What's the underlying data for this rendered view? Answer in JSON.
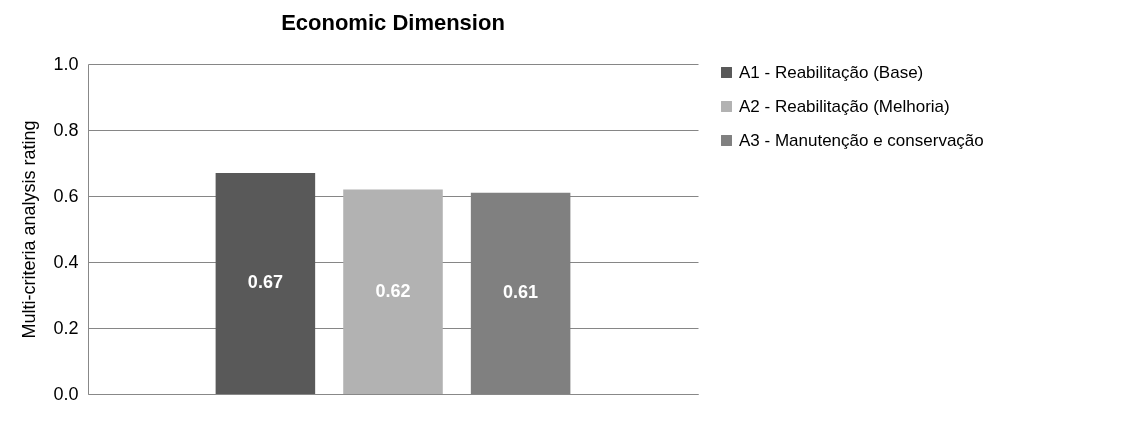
{
  "chart_data": {
    "type": "bar",
    "title": "Economic Dimension",
    "ylabel": "Multi-criteria analysis rating",
    "categories": [
      null
    ],
    "series": [
      {
        "name": "A1 - Reabilitação (Base)",
        "color": "#595959",
        "values": [
          0.67
        ]
      },
      {
        "name": "A2 - Reabilitação (Melhoria)",
        "color": "#b2b2b2",
        "values": [
          0.62
        ]
      },
      {
        "name": "A3 - Manutenção e conservação",
        "color": "#808080",
        "values": [
          0.61
        ]
      }
    ],
    "ylim": [
      0,
      1
    ],
    "yticks": [
      {
        "value": 0,
        "label": "0.0"
      },
      0.2,
      0.4,
      0.6,
      0.8,
      {
        "value": 1,
        "label": "1.0"
      }
    ],
    "grid": "y",
    "legend": "right",
    "data_labels": true,
    "tick_labels": "y"
  }
}
